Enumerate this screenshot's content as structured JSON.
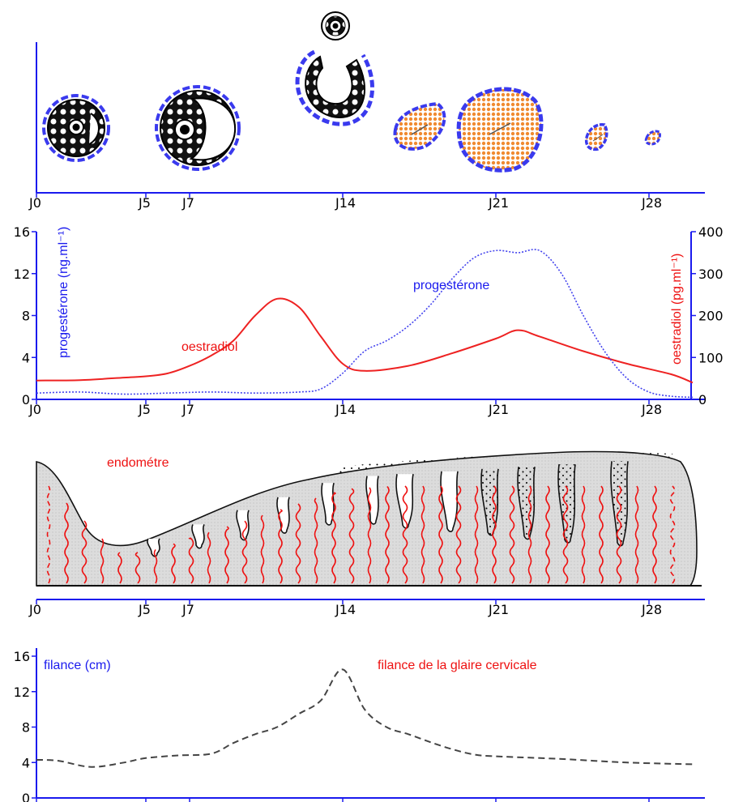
{
  "colors": {
    "axis": "#1a1aee",
    "oestradiol": "#ee2222",
    "progesterone": "#4444ee",
    "filance": "#444444",
    "endometrium": "#dddddd",
    "corpus": "#f08a30"
  },
  "day_ticks": [
    "J0",
    "J5",
    "J7",
    "J14",
    "J21",
    "J28"
  ],
  "chart_data": [
    {
      "type": "diagram",
      "panel": "ovaire",
      "stages_at_day": [
        0,
        5.5,
        10.5,
        14,
        18,
        21,
        26,
        28.5
      ],
      "x_ticks": [
        "J0",
        "J5",
        "J7",
        "J14",
        "J21",
        "J28"
      ]
    },
    {
      "type": "line",
      "panel": "hormones",
      "x_ticks": [
        "J0",
        "J5",
        "J7",
        "J14",
        "J21",
        "J28"
      ],
      "xlim": [
        0,
        30
      ],
      "left_axis": {
        "label": "progestérone (ng.ml⁻¹)",
        "ticks": [
          "0",
          "4",
          "8",
          "12",
          "16"
        ],
        "ylim": [
          0,
          16
        ]
      },
      "right_axis": {
        "label": "oestradiol (pg.ml⁻¹)",
        "ticks": [
          "0",
          "100",
          "200",
          "300",
          "400"
        ],
        "ylim": [
          0,
          400
        ]
      },
      "series": [
        {
          "name": "oestradiol",
          "axis": "right",
          "color": "#ee2222",
          "x": [
            0,
            2,
            4,
            5,
            6,
            7,
            8,
            9,
            10,
            11,
            12,
            13,
            14,
            15,
            17,
            19,
            21,
            22,
            23,
            25,
            27,
            29,
            30
          ],
          "y": [
            45,
            46,
            52,
            55,
            62,
            80,
            105,
            140,
            200,
            240,
            220,
            150,
            85,
            68,
            80,
            110,
            145,
            165,
            150,
            115,
            85,
            60,
            40
          ]
        },
        {
          "name": "progestérone",
          "axis": "left",
          "color": "#4444ee",
          "x": [
            0,
            2,
            4,
            6,
            8,
            10,
            12,
            13,
            14,
            15,
            16,
            17,
            18,
            19,
            20,
            21,
            22,
            23,
            24,
            25,
            26,
            27,
            28,
            29,
            30
          ],
          "y": [
            0.6,
            0.7,
            0.5,
            0.6,
            0.7,
            0.6,
            0.7,
            1.0,
            2.5,
            4.6,
            5.6,
            7.0,
            9.0,
            11.5,
            13.5,
            14.2,
            14.0,
            14.2,
            12.0,
            8.0,
            4.5,
            2.0,
            0.7,
            0.3,
            0.2
          ]
        }
      ],
      "annotations": [
        "oestradiol",
        "progestérone"
      ]
    },
    {
      "type": "diagram",
      "panel": "endomètre",
      "label": "endométre",
      "x_ticks": [
        "J0",
        "J5",
        "J7",
        "J14",
        "J21",
        "J28"
      ]
    },
    {
      "type": "line",
      "panel": "glaire cervicale",
      "title": "filance de la glaire cervicale",
      "ylabel": "filance (cm)",
      "x_ticks": [
        "J0",
        "J5",
        "J7",
        "J14",
        "J21",
        "J28"
      ],
      "y_ticks": [
        "0",
        "4",
        "8",
        "12",
        "16"
      ],
      "xlim": [
        0,
        30
      ],
      "ylim": [
        0,
        16
      ],
      "series": [
        {
          "color": "#444444",
          "x": [
            0,
            1,
            2.5,
            4,
            5,
            6.5,
            8,
            9,
            10,
            11,
            12,
            13,
            14,
            15,
            16,
            17,
            18,
            19,
            20,
            21,
            24,
            27,
            30
          ],
          "y": [
            4.3,
            4.2,
            3.5,
            4.0,
            4.5,
            4.8,
            5.0,
            6.2,
            7.2,
            8.0,
            9.5,
            11.0,
            14.5,
            10.0,
            8.0,
            7.2,
            6.3,
            5.5,
            4.9,
            4.7,
            4.4,
            4.0,
            3.8
          ]
        }
      ]
    }
  ]
}
